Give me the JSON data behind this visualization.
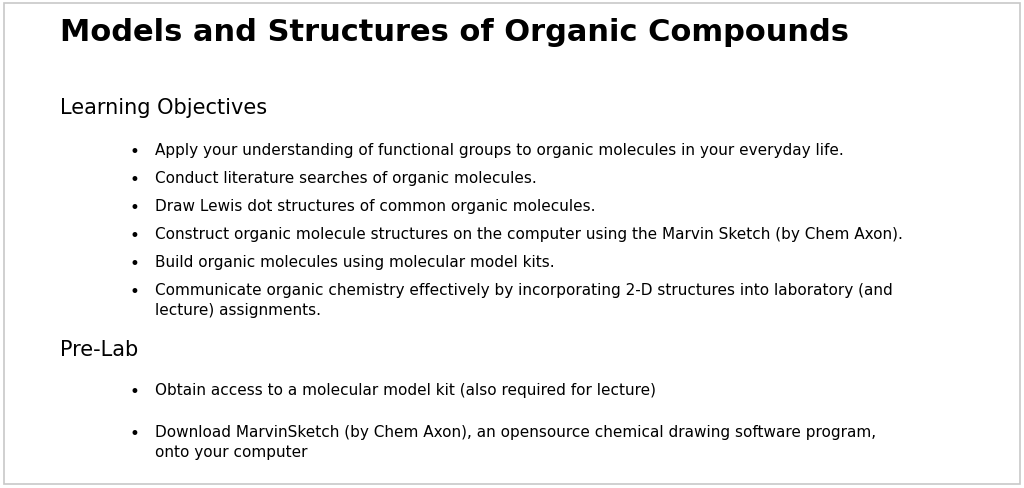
{
  "title": "Models and Structures of Organic Compounds",
  "background_color": "#ffffff",
  "border_color": "#c8c8c8",
  "title_fontsize": 22,
  "title_fontweight": "bold",
  "section1_heading": "Learning Objectives",
  "section1_heading_fontsize": 15,
  "section1_bullets": [
    "Apply your understanding of functional groups to organic molecules in your everyday life.",
    "Conduct literature searches of organic molecules.",
    "Draw Lewis dot structures of common organic molecules.",
    "Construct organic molecule structures on the computer using the Marvin Sketch (by Chem Axon).",
    "Build organic molecules using molecular model kits.",
    "Communicate organic chemistry effectively by incorporating 2-D structures into laboratory (and\nlecture) assignments."
  ],
  "section2_heading": "Pre-Lab",
  "section2_heading_fontsize": 15,
  "section2_bullets": [
    "Obtain access to a molecular model kit (also required for lecture)",
    "Download MarvinSketch (by Chem Axon), an opensource chemical drawing software program,\nonto your computer"
  ],
  "bullet_fontsize": 11,
  "text_color": "#000000",
  "font_family": "DejaVu Sans"
}
